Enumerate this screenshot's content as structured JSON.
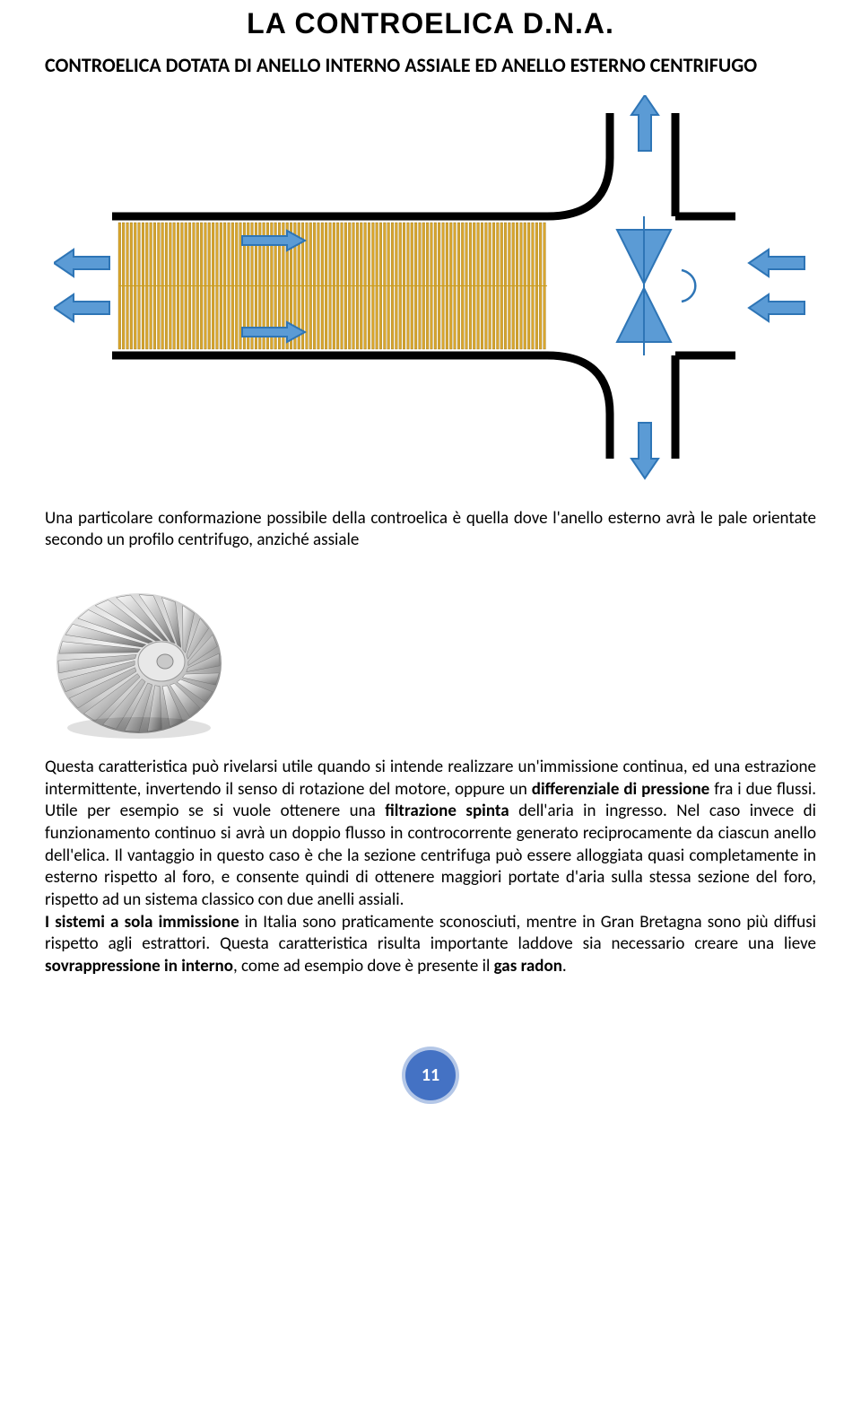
{
  "title": "LA CONTROELICA D.N.A.",
  "subtitle": "CONTROELICA DOTATA DI ANELLO INTERNO ASSIALE ED ANELLO ESTERNO CENTRIFUGO",
  "intro": "Una particolare conformazione possibile della controelica è quella dove l'anello esterno avrà le pale orientate secondo un profilo centrifugo, anziché assiale",
  "body_p1_a": "Questa caratteristica può rivelarsi utile quando si intende realizzare un'immissione continua, ed una estrazione intermittente, invertendo il senso di rotazione del motore, oppure un ",
  "body_p1_b1": "differenziale di pressione",
  "body_p1_c": " fra i due flussi. Utile per esempio se si vuole ottenere una ",
  "body_p1_b2": "filtrazione spinta",
  "body_p1_d": " dell'aria in ingresso. Nel caso invece di funzionamento continuo si avrà un doppio flusso in controcorrente generato reciprocamente da ciascun anello dell'elica. Il vantaggio in questo caso è che la sezione centrifuga può essere alloggiata quasi completamente in esterno rispetto al foro, e consente quindi di ottenere maggiori portate d'aria sulla stessa sezione del foro, rispetto ad un sistema classico con due anelli assiali.",
  "body_p2_b1": "I sistemi a sola immissione",
  "body_p2_a": " in Italia sono praticamente sconosciuti, mentre in Gran Bretagna sono più diffusi rispetto agli estrattori. Questa caratteristica risulta importante laddove sia necessario creare una lieve ",
  "body_p2_b2": "sovrappressione in interno",
  "body_p2_c": ", come ad esempio dove è presente il ",
  "body_p2_b3": "gas radon",
  "body_p2_d": ".",
  "page_number": "11",
  "diagram": {
    "colors": {
      "arrow_fill": "#5b9bd5",
      "arrow_stroke": "#2e75b6",
      "curve_stroke": "#2e75b6",
      "pipe_stroke": "#000000",
      "fin_fill": "#d9a62e",
      "fin_stroke": "#806000",
      "badge_fill": "#4472c4",
      "badge_ring": "#b4c7e7"
    }
  }
}
